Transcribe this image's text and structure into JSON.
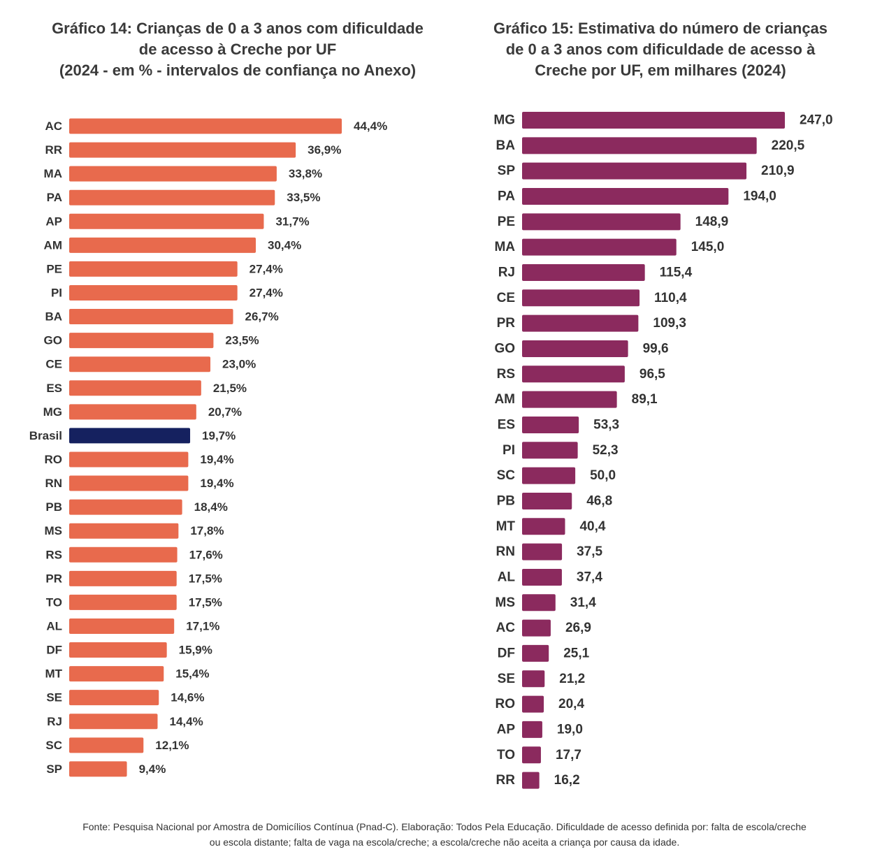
{
  "chart_data": [
    {
      "type": "bar",
      "orientation": "horizontal",
      "title": "Gráfico 14: Crianças de 0 a 3 anos com dificuldade de acesso à Creche por UF",
      "title_lines": [
        "Gráfico 14: Crianças de 0 a 3 anos com dificuldade",
        "de acesso à Creche por UF"
      ],
      "subtitle": "(2024 - em % - intervalos de confiança no Anexo)",
      "unit": "%",
      "color": "#E86A4D",
      "highlight_color": "#15215F",
      "highlight": "Brasil",
      "categories": [
        "AC",
        "RR",
        "MA",
        "PA",
        "AP",
        "AM",
        "PE",
        "PI",
        "BA",
        "GO",
        "CE",
        "ES",
        "MG",
        "Brasil",
        "RO",
        "RN",
        "PB",
        "MS",
        "RS",
        "PR",
        "TO",
        "AL",
        "DF",
        "MT",
        "SE",
        "RJ",
        "SC",
        "SP"
      ],
      "values": [
        44.4,
        36.9,
        33.8,
        33.5,
        31.7,
        30.4,
        27.4,
        27.4,
        26.7,
        23.5,
        23.0,
        21.5,
        20.7,
        19.7,
        19.4,
        19.4,
        18.4,
        17.8,
        17.6,
        17.5,
        17.5,
        17.1,
        15.9,
        15.4,
        14.6,
        14.4,
        12.1,
        9.4
      ],
      "labels": [
        "44,4%",
        "36,9%",
        "33,8%",
        "33,5%",
        "31,7%",
        "30,4%",
        "27,4%",
        "27,4%",
        "26,7%",
        "23,5%",
        "23,0%",
        "21,5%",
        "20,7%",
        "19,7%",
        "19,4%",
        "19,4%",
        "18,4%",
        "17,8%",
        "17,6%",
        "17,5%",
        "17,5%",
        "17,1%",
        "15,9%",
        "15,4%",
        "14,6%",
        "14,4%",
        "12,1%",
        "9,4%"
      ],
      "xlim": [
        0,
        44.4
      ]
    },
    {
      "type": "bar",
      "orientation": "horizontal",
      "title": "Gráfico 15: Estimativa do número de crianças de 0 a 3 anos com dificuldade de acesso à Creche por UF, em milhares (2024)",
      "title_lines": [
        "Gráfico 15: Estimativa do número de crianças",
        "de 0 a 3 anos com dificuldade de acesso à",
        "Creche por UF, em milhares (2024)"
      ],
      "unit": "milhares",
      "color": "#8B2A5E",
      "categories": [
        "MG",
        "BA",
        "SP",
        "PA",
        "PE",
        "MA",
        "RJ",
        "CE",
        "PR",
        "GO",
        "RS",
        "AM",
        "ES",
        "PI",
        "SC",
        "PB",
        "MT",
        "RN",
        "AL",
        "MS",
        "AC",
        "DF",
        "SE",
        "RO",
        "AP",
        "TO",
        "RR"
      ],
      "values": [
        247.0,
        220.5,
        210.9,
        194.0,
        148.9,
        145.0,
        115.4,
        110.4,
        109.3,
        99.6,
        96.5,
        89.1,
        53.3,
        52.3,
        50.0,
        46.8,
        40.4,
        37.5,
        37.4,
        31.4,
        26.9,
        25.1,
        21.2,
        20.4,
        19.0,
        17.7,
        16.2
      ],
      "labels": [
        "247,0",
        "220,5",
        "210,9",
        "194,0",
        "148,9",
        "145,0",
        "115,4",
        "110,4",
        "109,3",
        "99,6",
        "96,5",
        "89,1",
        "53,3",
        "52,3",
        "50,0",
        "46,8",
        "40,4",
        "37,5",
        "37,4",
        "31,4",
        "26,9",
        "25,1",
        "21,2",
        "20,4",
        "19,0",
        "17,7",
        "16,2"
      ],
      "xlim": [
        0,
        247.0
      ]
    }
  ],
  "footer": {
    "line1": "Fonte: Pesquisa Nacional por Amostra de Domicílios Contínua (Pnad-C). Elaboração: Todos Pela Educação. Dificuldade de acesso definida por: falta de escola/creche",
    "line2": "ou escola distante; falta de vaga na escola/creche; a escola/creche não aceita a criança por causa da idade."
  }
}
